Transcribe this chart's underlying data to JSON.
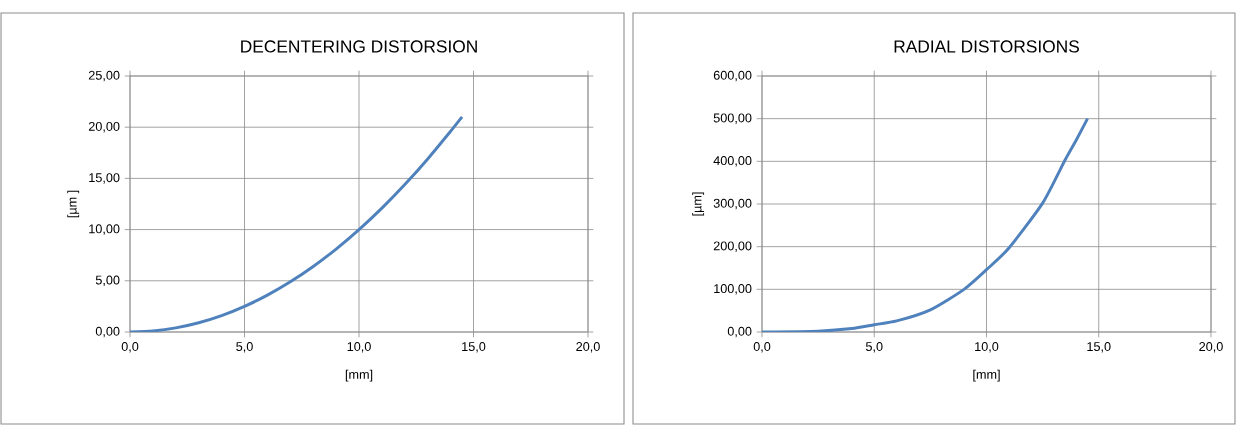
{
  "chart_data": [
    {
      "type": "line",
      "title": "DECENTERING DISTORSION",
      "xlabel": "[mm]",
      "ylabel": "[µm ]",
      "x": [
        0,
        1,
        2,
        3,
        4,
        5,
        6,
        7,
        8,
        9,
        10,
        11,
        12,
        13,
        14,
        14.5
      ],
      "series": [
        {
          "color": "#4f81bd",
          "values": [
            0,
            0.1,
            0.4,
            0.9,
            1.6,
            2.5,
            3.6,
            4.9,
            6.4,
            8.1,
            10.0,
            12.1,
            14.4,
            16.9,
            19.6,
            21.0
          ]
        }
      ],
      "xlim": [
        0,
        20
      ],
      "ylim": [
        0,
        25
      ],
      "xticks": [
        {
          "value": 0,
          "label": "0,0"
        },
        {
          "value": 5,
          "label": "5,0"
        },
        {
          "value": 10,
          "label": "10,0"
        },
        {
          "value": 15,
          "label": "15,0"
        },
        {
          "value": 20,
          "label": "20,0"
        }
      ],
      "yticks": [
        {
          "value": 0,
          "label": "0,00"
        },
        {
          "value": 5,
          "label": "5,00"
        },
        {
          "value": 10,
          "label": "10,00"
        },
        {
          "value": 15,
          "label": "15,00"
        },
        {
          "value": 20,
          "label": "20,00"
        },
        {
          "value": 25,
          "label": "25,00"
        }
      ],
      "grid": true
    },
    {
      "type": "line",
      "title": "RADIAL DISTORSIONS",
      "xlabel": "[mm]",
      "ylabel": "[µm]",
      "x": [
        0,
        2.5,
        4,
        5,
        6,
        7.5,
        9,
        10,
        11,
        12.5,
        13.5,
        14,
        14.5
      ],
      "series": [
        {
          "color": "#4f81bd",
          "values": [
            0,
            2,
            8,
            17,
            26,
            52,
            100,
            146,
            197,
            302,
            403,
            450,
            500
          ]
        }
      ],
      "xlim": [
        0,
        20
      ],
      "ylim": [
        0,
        600
      ],
      "xticks": [
        {
          "value": 0,
          "label": "0,0"
        },
        {
          "value": 5,
          "label": "5,0"
        },
        {
          "value": 10,
          "label": "10,0"
        },
        {
          "value": 15,
          "label": "15,0"
        },
        {
          "value": 20,
          "label": "20,0"
        }
      ],
      "yticks": [
        {
          "value": 0,
          "label": "0,00"
        },
        {
          "value": 100,
          "label": "100,00"
        },
        {
          "value": 200,
          "label": "200,00"
        },
        {
          "value": 300,
          "label": "300,00"
        },
        {
          "value": 400,
          "label": "400,00"
        },
        {
          "value": 500,
          "label": "500,00"
        },
        {
          "value": 600,
          "label": "600,00"
        }
      ],
      "grid": true
    }
  ]
}
